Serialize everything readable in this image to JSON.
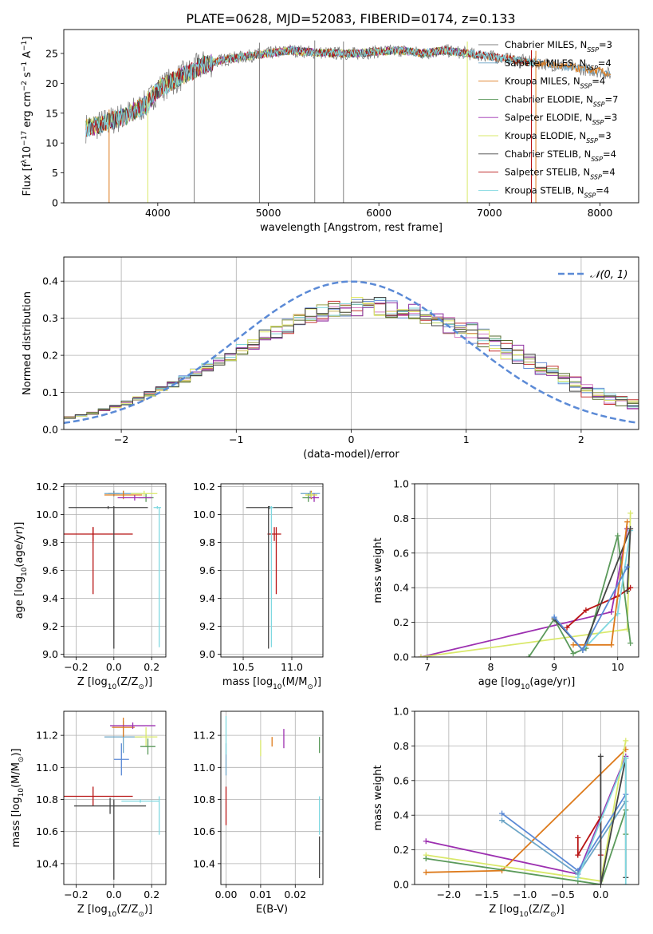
{
  "figure": {
    "title": "PLATE=0628, MJD=52083, FIBERID=0174, z=0.133"
  },
  "palette": {
    "chabrier_miles": "#808080",
    "salpeter_miles": "#6ca5c6",
    "kroupa_miles": "#dd7a1b",
    "chabrier_elodie": "#5b9a5b",
    "salpeter_elodie": "#9c2fb0",
    "kroupa_elodie": "#d9e86a",
    "chabrier_stelib": "#444444",
    "salpeter_stelib": "#b81414",
    "kroupa_stelib": "#7fd8e0",
    "gauss": "#5b8ad6"
  },
  "chart_data": [
    {
      "id": "spectrum",
      "type": "line",
      "xlabel": "wavelength [Angstrom, rest frame]",
      "ylabel_parts": [
        "Flux [f",
        "λ",
        "10",
        "−17",
        " erg cm",
        "−2",
        " s",
        "−1",
        " A",
        "−1",
        "]"
      ],
      "xlim": [
        3150,
        8350
      ],
      "ylim": [
        0,
        29
      ],
      "xticks": [
        4000,
        5000,
        6000,
        7000,
        8000
      ],
      "yticks": [
        0,
        5,
        10,
        15,
        20,
        25
      ],
      "grid": false,
      "legend_position": "right",
      "series": [
        {
          "key": "chabrier_miles",
          "base": "Chabrier MILES, N",
          "sub": "SSP",
          "n": "=3"
        },
        {
          "key": "salpeter_miles",
          "base": "Salpeter MILES, N",
          "sub": "SSP",
          "n": "=4"
        },
        {
          "key": "kroupa_miles",
          "base": "Kroupa MILES, N",
          "sub": "SSP",
          "n": "=4"
        },
        {
          "key": "chabrier_elodie",
          "base": "Chabrier ELODIE, N",
          "sub": "SSP",
          "n": "=7"
        },
        {
          "key": "salpeter_elodie",
          "base": "Salpeter ELODIE, N",
          "sub": "SSP",
          "n": "=3"
        },
        {
          "key": "kroupa_elodie",
          "base": "Kroupa ELODIE, N",
          "sub": "SSP",
          "n": "=3"
        },
        {
          "key": "chabrier_stelib",
          "base": "Chabrier STELIB, N",
          "sub": "SSP",
          "n": "=4"
        },
        {
          "key": "salpeter_stelib",
          "base": "Salpeter STELIB, N",
          "sub": "SSP",
          "n": "=4"
        },
        {
          "key": "kroupa_stelib",
          "base": "Kroupa STELIB, N",
          "sub": "SSP",
          "n": "=4"
        }
      ],
      "continuum": {
        "x": [
          3350,
          3500,
          3700,
          3900,
          4000,
          4200,
          4400,
          4600,
          4800,
          5000,
          5200,
          5400,
          5600,
          5800,
          6000,
          6200,
          6400,
          6600,
          6800,
          7000,
          7200,
          7400,
          7600,
          7800,
          8000,
          8100
        ],
        "y": [
          12.5,
          13.2,
          14.5,
          16.5,
          19.0,
          21.0,
          23.0,
          24.0,
          24.5,
          25.0,
          25.5,
          25.2,
          25.0,
          25.0,
          25.3,
          25.5,
          25.0,
          25.5,
          25.0,
          24.5,
          24.0,
          23.5,
          23.0,
          22.5,
          22.0,
          21.5
        ]
      }
    },
    {
      "id": "residuals",
      "type": "histogram",
      "xlabel": "(data-model)/error",
      "ylabel": "Normed distribution",
      "xlim": [
        -2.5,
        2.5
      ],
      "ylim": [
        0,
        0.465
      ],
      "xticks": [
        -2,
        -1,
        0,
        1,
        2
      ],
      "yticks": [
        0.0,
        0.1,
        0.2,
        0.3,
        0.4
      ],
      "grid": true,
      "legend": {
        "label": "𝒩(0, 1)",
        "position": "top-right"
      },
      "gaussian": {
        "mean": 0,
        "sigma": 1
      },
      "bin_width": 0.1,
      "histogram_colors": [
        "#6b8fd6",
        "#c53030",
        "#d47cc2",
        "#9aa24a",
        "#556b2f",
        "#7ed3da",
        "#8e2fa0",
        "#e2e96a",
        "#444444"
      ]
    },
    {
      "id": "age_vs_Z",
      "type": "errorbar",
      "xlabel_parts": [
        "Z [log",
        "10",
        "(Z/Z",
        "⊙",
        ")]"
      ],
      "ylabel_parts": [
        "age  [log",
        "10",
        "(age/yr)]"
      ],
      "xlim": [
        -0.265,
        0.275
      ],
      "ylim": [
        8.98,
        10.22
      ],
      "xticks": [
        -0.2,
        0.0,
        0.2
      ],
      "yticks": [
        9.0,
        9.2,
        9.4,
        9.6,
        9.8,
        10.0,
        10.2
      ],
      "grid": true,
      "points": [
        {
          "key": "chabrier_miles",
          "x": 0.0,
          "xerr": 0.03,
          "y": 10.15,
          "yerr": 0.02
        },
        {
          "key": "salpeter_miles",
          "x": 0.05,
          "xerr": 0.1,
          "y": 10.15,
          "yerr": 0.02
        },
        {
          "key": "kroupa_miles",
          "x": 0.05,
          "xerr": 0.1,
          "y": 10.14,
          "yerr": 0.03
        },
        {
          "key": "chabrier_elodie",
          "x": 0.17,
          "xerr": 0.04,
          "y": 10.12,
          "yerr": 0.03
        },
        {
          "key": "salpeter_elodie",
          "x": 0.11,
          "xerr": 0.09,
          "y": 10.12,
          "yerr": 0.02
        },
        {
          "key": "kroupa_elodie",
          "x": 0.16,
          "xerr": 0.07,
          "y": 10.15,
          "yerr": 0.02
        },
        {
          "key": "chabrier_stelib",
          "x": -0.03,
          "xerr": 0.21,
          "y": 10.05,
          "yerr": 0.01
        },
        {
          "key": "salpeter_stelib",
          "x": -0.11,
          "xerr": 0.21,
          "y": 9.86,
          "yerr": 0.05
        },
        {
          "key": "kroupa_stelib",
          "x": 0.23,
          "xerr": 0.02,
          "y": 10.05,
          "yerr": 0.01
        },
        {
          "key": "chabrier_stelib",
          "x": 0.0,
          "xerr": 0.0,
          "y": 9.55,
          "yerr": 0.51
        },
        {
          "key": "salpeter_stelib",
          "x": -0.11,
          "xerr": 0.0,
          "y": 9.67,
          "yerr": 0.24
        },
        {
          "key": "kroupa_stelib",
          "x": 0.24,
          "xerr": 0.0,
          "y": 9.55,
          "yerr": 0.5
        }
      ]
    },
    {
      "id": "age_vs_mass",
      "type": "errorbar",
      "xlabel_parts": [
        "mass [log",
        "10",
        "(M/M",
        "⊙",
        ")]"
      ],
      "xlim": [
        10.27,
        11.32
      ],
      "ylim": [
        8.98,
        10.22
      ],
      "xticks": [
        10.5,
        11.0
      ],
      "yticks": [
        9.0,
        9.2,
        9.4,
        9.6,
        9.8,
        10.0,
        10.2
      ],
      "grid": true,
      "points": [
        {
          "key": "salpeter_miles",
          "x": 11.19,
          "xerr": 0.1,
          "y": 10.15,
          "yerr": 0.02
        },
        {
          "key": "kroupa_miles",
          "x": 11.2,
          "xerr": 0.06,
          "y": 10.14,
          "yerr": 0.03
        },
        {
          "key": "chabrier_elodie",
          "x": 11.17,
          "xerr": 0.06,
          "y": 10.12,
          "yerr": 0.03
        },
        {
          "key": "salpeter_elodie",
          "x": 11.23,
          "xerr": 0.05,
          "y": 10.12,
          "yerr": 0.03
        },
        {
          "key": "kroupa_elodie",
          "x": 11.2,
          "xerr": 0.06,
          "y": 10.14,
          "yerr": 0.02
        },
        {
          "key": "chabrier_stelib",
          "x": 10.77,
          "xerr": 0.24,
          "y": 10.05,
          "yerr": 0.01
        },
        {
          "key": "salpeter_stelib",
          "x": 10.82,
          "xerr": 0.07,
          "y": 9.86,
          "yerr": 0.05
        },
        {
          "key": "kroupa_stelib",
          "x": 10.79,
          "xerr": 0.02,
          "y": 10.05,
          "yerr": 0.01
        },
        {
          "key": "chabrier_stelib",
          "x": 10.76,
          "xerr": 0.0,
          "y": 9.55,
          "yerr": 0.51
        },
        {
          "key": "salpeter_stelib",
          "x": 10.84,
          "xerr": 0.0,
          "y": 9.67,
          "yerr": 0.24
        },
        {
          "key": "kroupa_stelib",
          "x": 10.79,
          "xerr": 0.0,
          "y": 9.55,
          "yerr": 0.5
        }
      ]
    },
    {
      "id": "weight_vs_age",
      "type": "line",
      "ylabel": "mass weight",
      "xlabel_parts": [
        "age  [log",
        "10",
        "(age/yr)]"
      ],
      "xlim": [
        6.8,
        10.33
      ],
      "ylim": [
        0,
        1.0
      ],
      "xticks": [
        7,
        8,
        9,
        10
      ],
      "yticks": [
        0.0,
        0.2,
        0.4,
        0.6,
        0.8,
        1.0
      ],
      "grid": true,
      "series": [
        {
          "key": "salpeter_elodie",
          "x": [
            6.9,
            9.9,
            10.15
          ],
          "y": [
            0.0,
            0.26,
            0.74
          ]
        },
        {
          "key": "kroupa_elodie",
          "x": [
            6.9,
            10.15,
            10.2
          ],
          "y": [
            0.0,
            0.16,
            0.83
          ]
        },
        {
          "key": "chabrier_elodie",
          "x": [
            8.6,
            9.0,
            9.3,
            9.5,
            10.0,
            10.2
          ],
          "y": [
            0.0,
            0.22,
            0.02,
            0.05,
            0.7,
            0.08
          ]
        },
        {
          "key": "salpeter_stelib",
          "x": [
            9.2,
            9.5,
            10.0,
            10.2
          ],
          "y": [
            0.17,
            0.27,
            0.35,
            0.4
          ]
        },
        {
          "key": "kroupa_stelib",
          "x": [
            9.0,
            9.45,
            10.0,
            10.2
          ],
          "y": [
            0.23,
            0.04,
            0.25,
            0.73
          ]
        },
        {
          "key": "chabrier_stelib",
          "x": [
            9.0,
            9.45,
            10.2,
            10.15
          ],
          "y": [
            0.22,
            0.04,
            0.74,
            0.38
          ]
        },
        {
          "key": "kroupa_miles",
          "x": [
            9.3,
            9.9,
            10.15
          ],
          "y": [
            0.07,
            0.07,
            0.78
          ]
        },
        {
          "key": "gauss",
          "x": [
            9.0,
            9.45,
            10.15
          ],
          "y": [
            0.23,
            0.04,
            0.52
          ]
        }
      ]
    },
    {
      "id": "mass_vs_Z",
      "type": "errorbar",
      "xlabel_parts": [
        "Z [log",
        "10",
        "(Z/Z",
        "⊙",
        ")]"
      ],
      "ylabel_parts": [
        "mass [log",
        "10",
        "(M/M",
        "⊙",
        ")]"
      ],
      "xlim": [
        -0.265,
        0.275
      ],
      "ylim": [
        10.27,
        11.35
      ],
      "xticks": [
        -0.2,
        0.0,
        0.2
      ],
      "yticks": [
        10.4,
        10.6,
        10.8,
        11.0,
        11.2
      ],
      "grid": true,
      "points": [
        {
          "key": "salpeter_miles",
          "x": 0.05,
          "xerr": 0.1,
          "y": 11.19,
          "yerr": 0.1
        },
        {
          "key": "kroupa_miles",
          "x": 0.05,
          "xerr": 0.06,
          "y": 11.25,
          "yerr": 0.06
        },
        {
          "key": "salpeter_elodie",
          "x": 0.1,
          "xerr": 0.12,
          "y": 11.26,
          "yerr": 0.02
        },
        {
          "key": "kroupa_elodie",
          "x": 0.17,
          "xerr": 0.06,
          "y": 11.19,
          "yerr": 0.06
        },
        {
          "key": "chabrier_elodie",
          "x": 0.18,
          "xerr": 0.04,
          "y": 11.13,
          "yerr": 0.05
        },
        {
          "key": "gauss",
          "x": 0.04,
          "xerr": 0.04,
          "y": 11.05,
          "yerr": 0.1
        },
        {
          "key": "salpeter_stelib",
          "x": -0.11,
          "xerr": 0.21,
          "y": 10.82,
          "yerr": 0.06
        },
        {
          "key": "chabrier_stelib",
          "x": -0.02,
          "xerr": 0.19,
          "y": 10.76,
          "yerr": 0.05
        },
        {
          "key": "kroupa_stelib",
          "x": 0.14,
          "xerr": 0.1,
          "y": 10.79,
          "yerr": 0.01
        },
        {
          "key": "chabrier_stelib",
          "x": 0.0,
          "xerr": 0.0,
          "y": 10.55,
          "yerr": 0.25
        },
        {
          "key": "kroupa_stelib",
          "x": 0.24,
          "xerr": 0.0,
          "y": 10.7,
          "yerr": 0.12
        }
      ]
    },
    {
      "id": "mass_vs_ebv",
      "type": "errorbar",
      "xlabel": "E(B-V)",
      "xlim": [
        -0.0015,
        0.028
      ],
      "ylim": [
        10.27,
        11.35
      ],
      "xticks": [
        0.0,
        0.01,
        0.02
      ],
      "yticks": [
        10.4,
        10.6,
        10.8,
        11.0,
        11.2
      ],
      "grid": true,
      "points": [
        {
          "key": "salpeter_stelib",
          "x": 0.0,
          "xerr": 0,
          "y": 10.76,
          "yerr": 0.12
        },
        {
          "key": "salpeter_miles",
          "x": 0.0,
          "xerr": 0,
          "y": 11.05,
          "yerr": 0.1
        },
        {
          "key": "kroupa_stelib",
          "x": 0.0,
          "xerr": 0,
          "y": 11.2,
          "yerr": 0.12
        },
        {
          "key": "kroupa_elodie",
          "x": 0.01,
          "xerr": 0,
          "y": 11.12,
          "yerr": 0.05
        },
        {
          "key": "kroupa_miles",
          "x": 0.0133,
          "xerr": 0,
          "y": 11.16,
          "yerr": 0.03
        },
        {
          "key": "salpeter_elodie",
          "x": 0.0167,
          "xerr": 0,
          "y": 11.18,
          "yerr": 0.06
        },
        {
          "key": "chabrier_elodie",
          "x": 0.027,
          "xerr": 0,
          "y": 11.14,
          "yerr": 0.05
        },
        {
          "key": "kroupa_stelib",
          "x": 0.027,
          "xerr": 0,
          "y": 10.7,
          "yerr": 0.12
        },
        {
          "key": "chabrier_stelib",
          "x": 0.027,
          "xerr": 0,
          "y": 10.44,
          "yerr": 0.13
        }
      ]
    },
    {
      "id": "weight_vs_Z",
      "type": "line",
      "ylabel": "mass weight",
      "xlabel_parts": [
        "Z [log",
        "10",
        "(Z/Z",
        "⊙",
        ")]"
      ],
      "xlim": [
        -2.45,
        0.5
      ],
      "ylim": [
        0,
        1.0
      ],
      "xticks": [
        -2.0,
        -1.5,
        -1.0,
        -0.5,
        0.0
      ],
      "yticks": [
        0.0,
        0.2,
        0.4,
        0.6,
        0.8,
        1.0
      ],
      "grid": true,
      "series": [
        {
          "key": "salpeter_elodie",
          "x": [
            -2.3,
            -0.3,
            0.33
          ],
          "y": [
            0.25,
            0.06,
            0.74
          ]
        },
        {
          "key": "kroupa_miles",
          "x": [
            -2.3,
            -1.3,
            0.33
          ],
          "y": [
            0.07,
            0.08,
            0.78
          ]
        },
        {
          "key": "kroupa_elodie",
          "x": [
            -2.3,
            0.0,
            0.33
          ],
          "y": [
            0.17,
            0.02,
            0.83
          ]
        },
        {
          "key": "chabrier_elodie",
          "x": [
            -2.3,
            -0.3,
            0.0,
            0.33,
            0.33
          ],
          "y": [
            0.15,
            0.02,
            0.0,
            0.43,
            0.29
          ]
        },
        {
          "key": "gauss",
          "x": [
            -1.3,
            -0.3,
            0.33
          ],
          "y": [
            0.41,
            0.08,
            0.52
          ]
        },
        {
          "key": "salpeter_miles",
          "x": [
            -1.3,
            -0.3,
            0.33
          ],
          "y": [
            0.37,
            0.06,
            0.48
          ]
        },
        {
          "key": "salpeter_stelib",
          "x": [
            -0.3,
            -0.3,
            0.0,
            0.0
          ],
          "y": [
            0.27,
            0.17,
            0.39,
            0.17
          ]
        },
        {
          "key": "chabrier_stelib",
          "x": [
            0.0,
            0.0,
            0.33,
            0.33
          ],
          "y": [
            0.74,
            0.0,
            0.73,
            0.04
          ]
        },
        {
          "key": "kroupa_stelib",
          "x": [
            -0.3,
            0.33,
            0.33
          ],
          "y": [
            0.04,
            0.73,
            0.0
          ]
        }
      ]
    }
  ]
}
